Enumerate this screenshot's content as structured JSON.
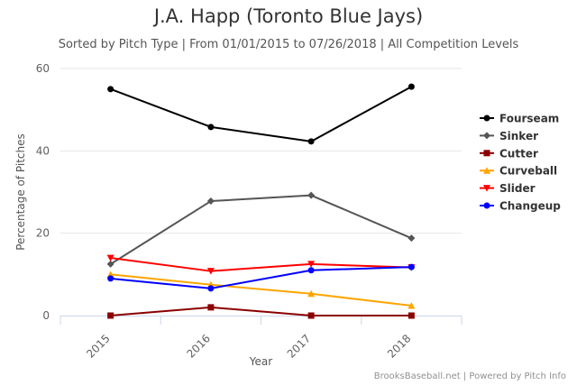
{
  "chart_data": {
    "type": "line",
    "title": "J.A. Happ (Toronto Blue Jays)",
    "subtitle": "Sorted by Pitch Type | From 01/01/2015 to 07/26/2018 | All Competition Levels",
    "xlabel": "Year",
    "ylabel": "Percentage of Pitches",
    "categories": [
      "2015",
      "2016",
      "2017",
      "2018"
    ],
    "ylim": [
      0,
      60
    ],
    "yticks": [
      0,
      20,
      40,
      60
    ],
    "grid": true,
    "legend_position": "right",
    "series": [
      {
        "name": "Fourseam",
        "color": "#000000",
        "marker": "circle",
        "values": [
          55.0,
          45.8,
          42.3,
          55.6
        ]
      },
      {
        "name": "Sinker",
        "color": "#555555",
        "marker": "diamond",
        "values": [
          12.5,
          27.8,
          29.2,
          18.8
        ]
      },
      {
        "name": "Cutter",
        "color": "#8b0000",
        "marker": "square",
        "values": [
          0.0,
          2.0,
          0.0,
          0.0
        ]
      },
      {
        "name": "Curveball",
        "color": "#ffa500",
        "marker": "triangle",
        "values": [
          10.0,
          7.5,
          5.3,
          2.4
        ]
      },
      {
        "name": "Slider",
        "color": "#ff0000",
        "marker": "triangle-down",
        "values": [
          14.0,
          10.8,
          12.5,
          11.7
        ]
      },
      {
        "name": "Changeup",
        "color": "#0000ff",
        "marker": "circle",
        "values": [
          9.0,
          6.6,
          11.0,
          11.8
        ]
      }
    ]
  },
  "credits": "BrooksBaseball.net | Powered by Pitch Info"
}
